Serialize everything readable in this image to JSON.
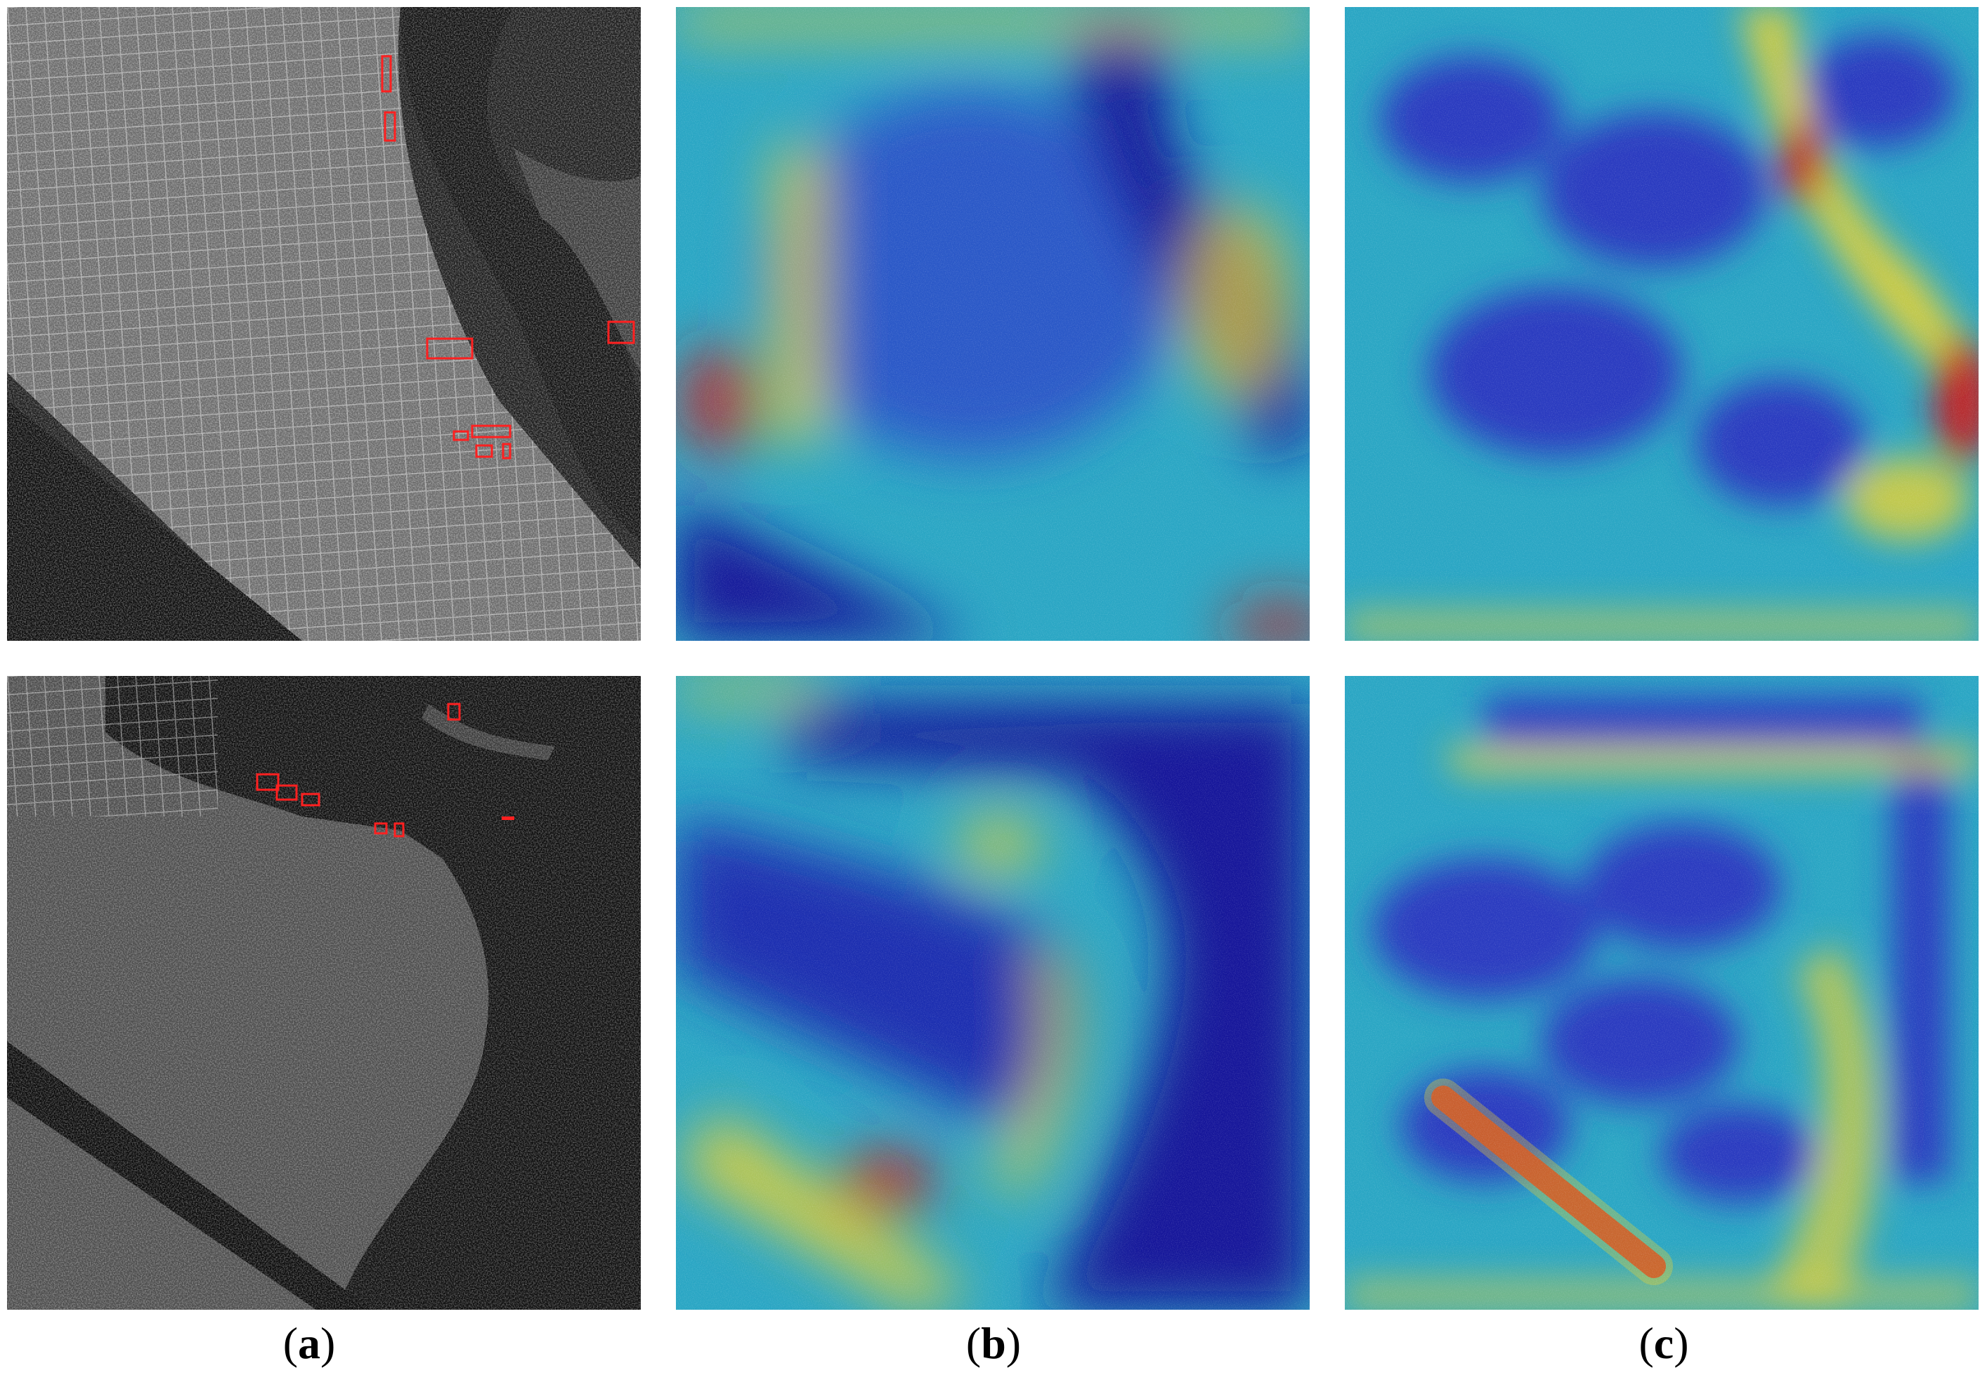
{
  "captions": {
    "a": "a",
    "b": "b",
    "c": "c"
  },
  "colors": {
    "box": "#ff2020",
    "heat_low": "#1a1ab0",
    "heat_mid": "#2fb3c8",
    "heat_high": "#e8d230",
    "heat_peak": "#c81e1e"
  },
  "panels": [
    {
      "name": "sar-image-top",
      "column": "a",
      "row": 1,
      "kind": "sar"
    },
    {
      "name": "heatmap-b-top",
      "column": "b",
      "row": 1,
      "kind": "heatmap"
    },
    {
      "name": "heatmap-c-top",
      "column": "c",
      "row": 1,
      "kind": "heatmap"
    },
    {
      "name": "sar-image-bottom",
      "column": "a",
      "row": 2,
      "kind": "sar"
    },
    {
      "name": "heatmap-b-bottom",
      "column": "b",
      "row": 2,
      "kind": "heatmap"
    },
    {
      "name": "heatmap-c-bottom",
      "column": "c",
      "row": 2,
      "kind": "heatmap"
    }
  ]
}
